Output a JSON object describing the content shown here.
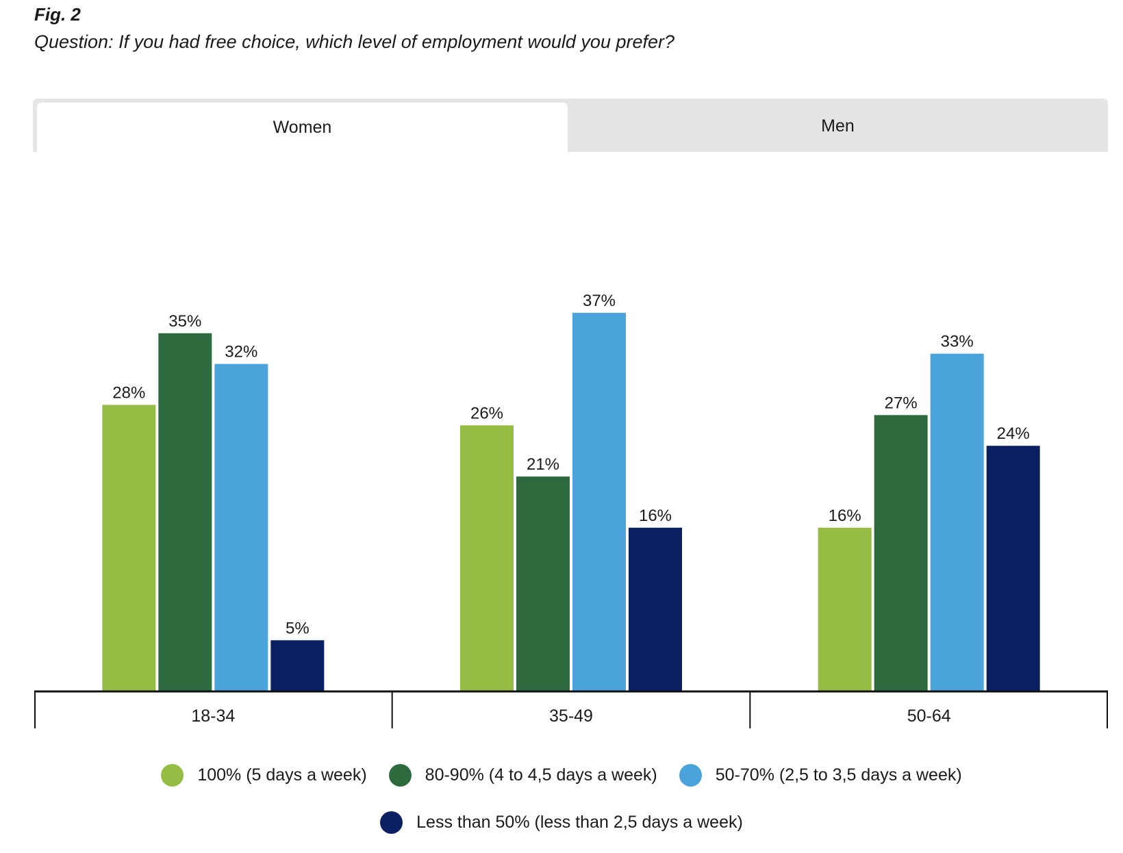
{
  "header": {
    "fig_label": "Fig. 2",
    "question": "Question: If you had free choice, which level of employment would you prefer?"
  },
  "tabs": [
    {
      "label": "Women",
      "active": true
    },
    {
      "label": "Men",
      "active": false
    }
  ],
  "chart_data": {
    "type": "bar",
    "title": "Question: If you had free choice, which level of employment would you prefer?",
    "xlabel": "",
    "ylabel": "",
    "ylim": [
      0,
      40
    ],
    "categories": [
      "18-34",
      "35-49",
      "50-64"
    ],
    "series": [
      {
        "name": "100% (5 days a week)",
        "color": "#95bd44",
        "values": [
          28,
          26,
          16
        ]
      },
      {
        "name": "80-90% (4 to 4,5 days a week)",
        "color": "#2d6a3e",
        "values": [
          35,
          21,
          27
        ]
      },
      {
        "name": "50-70% (2,5 to 3,5 days a week)",
        "color": "#4aa3db",
        "values": [
          32,
          37,
          33
        ]
      },
      {
        "name": "Less than 50% (less than 2,5 days a week)",
        "color": "#0b2063",
        "values": [
          5,
          16,
          24
        ]
      }
    ],
    "value_suffix": "%",
    "legend_position": "bottom"
  }
}
